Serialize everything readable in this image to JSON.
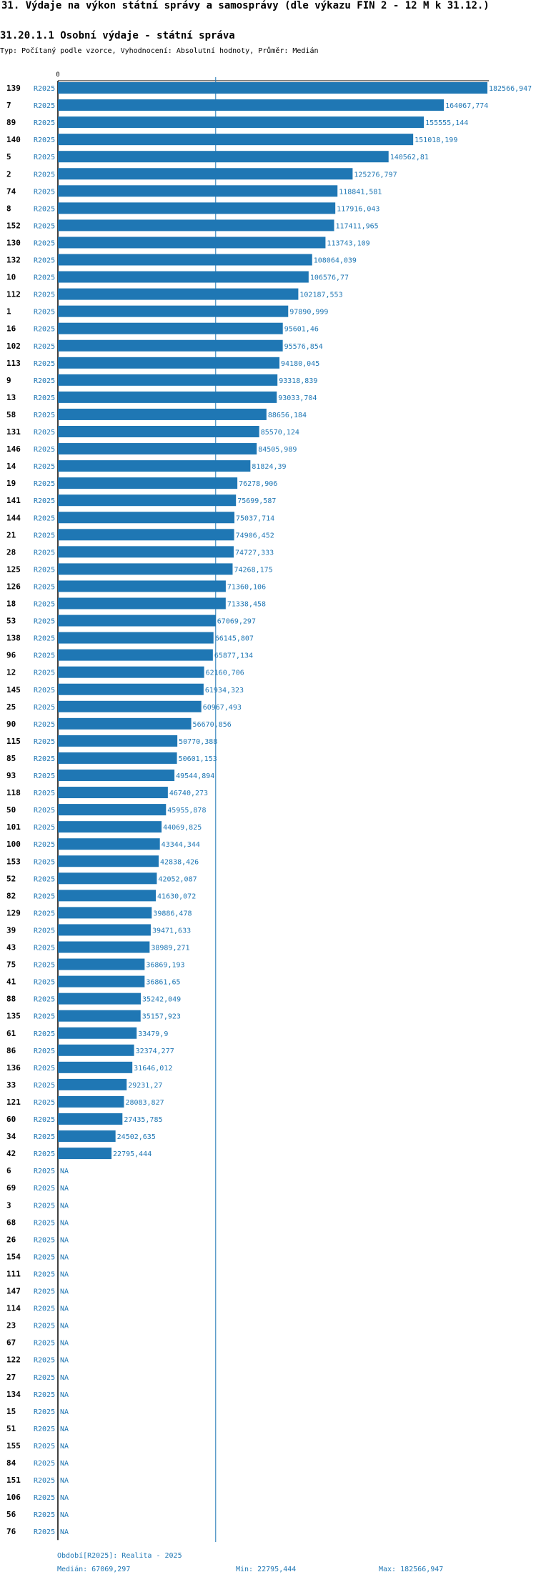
{
  "header": {
    "title": "31. Výdaje na výkon státní správy a samosprávy (dle výkazu FIN 2 - 12 M k 31.12.)",
    "subtitle": "31.20.1.1 Osobní výdaje - státní správa",
    "type_line": "Typ: Počítaný podle vzorce, Vyhodnocení: Absolutní hodnoty, Průměr: Medián"
  },
  "footer": {
    "period": "Období[R2025]: Realita - 2025",
    "median": "Medián: 67069,297",
    "min": "Min: 22795,444",
    "max": "Max: 182566,947"
  },
  "colors": {
    "bar": "#1f77b4",
    "text": "#000000",
    "label": "#1f77b4"
  },
  "chart_data": {
    "type": "bar",
    "orientation": "horizontal",
    "title": "31.20.1.1 Osobní výdaje - státní správa",
    "axis_zero_label": "0",
    "period_label": "R2025",
    "na_label": "NA",
    "xlim": [
      0,
      182566.947
    ],
    "median": 67069.297,
    "rows": [
      {
        "id": "139",
        "value": 182566.947,
        "label": "182566,947"
      },
      {
        "id": "7",
        "value": 164067.774,
        "label": "164067,774"
      },
      {
        "id": "89",
        "value": 155555.144,
        "label": "155555,144"
      },
      {
        "id": "140",
        "value": 151018.199,
        "label": "151018,199"
      },
      {
        "id": "5",
        "value": 140562.81,
        "label": "140562,81"
      },
      {
        "id": "2",
        "value": 125276.797,
        "label": "125276,797"
      },
      {
        "id": "74",
        "value": 118841.581,
        "label": "118841,581"
      },
      {
        "id": "8",
        "value": 117916.043,
        "label": "117916,043"
      },
      {
        "id": "152",
        "value": 117411.965,
        "label": "117411,965"
      },
      {
        "id": "130",
        "value": 113743.109,
        "label": "113743,109"
      },
      {
        "id": "132",
        "value": 108064.039,
        "label": "108064,039"
      },
      {
        "id": "10",
        "value": 106576.77,
        "label": "106576,77"
      },
      {
        "id": "112",
        "value": 102187.553,
        "label": "102187,553"
      },
      {
        "id": "1",
        "value": 97890.999,
        "label": "97890,999"
      },
      {
        "id": "16",
        "value": 95601.46,
        "label": "95601,46"
      },
      {
        "id": "102",
        "value": 95576.854,
        "label": "95576,854"
      },
      {
        "id": "113",
        "value": 94180.045,
        "label": "94180,045"
      },
      {
        "id": "9",
        "value": 93318.839,
        "label": "93318,839"
      },
      {
        "id": "13",
        "value": 93033.704,
        "label": "93033,704"
      },
      {
        "id": "58",
        "value": 88656.184,
        "label": "88656,184"
      },
      {
        "id": "131",
        "value": 85570.124,
        "label": "85570,124"
      },
      {
        "id": "146",
        "value": 84505.989,
        "label": "84505,989"
      },
      {
        "id": "14",
        "value": 81824.39,
        "label": "81824,39"
      },
      {
        "id": "19",
        "value": 76278.906,
        "label": "76278,906"
      },
      {
        "id": "141",
        "value": 75699.587,
        "label": "75699,587"
      },
      {
        "id": "144",
        "value": 75037.714,
        "label": "75037,714"
      },
      {
        "id": "21",
        "value": 74906.452,
        "label": "74906,452"
      },
      {
        "id": "28",
        "value": 74727.333,
        "label": "74727,333"
      },
      {
        "id": "125",
        "value": 74268.175,
        "label": "74268,175"
      },
      {
        "id": "126",
        "value": 71360.106,
        "label": "71360,106"
      },
      {
        "id": "18",
        "value": 71338.458,
        "label": "71338,458"
      },
      {
        "id": "53",
        "value": 67069.297,
        "label": "67069,297"
      },
      {
        "id": "138",
        "value": 66145.807,
        "label": "66145,807"
      },
      {
        "id": "96",
        "value": 65877.134,
        "label": "65877,134"
      },
      {
        "id": "12",
        "value": 62160.706,
        "label": "62160,706"
      },
      {
        "id": "145",
        "value": 61934.323,
        "label": "61934,323"
      },
      {
        "id": "25",
        "value": 60967.493,
        "label": "60967,493"
      },
      {
        "id": "90",
        "value": 56670.856,
        "label": "56670,856"
      },
      {
        "id": "115",
        "value": 50770.388,
        "label": "50770,388"
      },
      {
        "id": "85",
        "value": 50601.153,
        "label": "50601,153"
      },
      {
        "id": "93",
        "value": 49544.894,
        "label": "49544,894"
      },
      {
        "id": "118",
        "value": 46740.273,
        "label": "46740,273"
      },
      {
        "id": "50",
        "value": 45955.878,
        "label": "45955,878"
      },
      {
        "id": "101",
        "value": 44069.825,
        "label": "44069,825"
      },
      {
        "id": "100",
        "value": 43344.344,
        "label": "43344,344"
      },
      {
        "id": "153",
        "value": 42838.426,
        "label": "42838,426"
      },
      {
        "id": "52",
        "value": 42052.087,
        "label": "42052,087"
      },
      {
        "id": "82",
        "value": 41630.072,
        "label": "41630,072"
      },
      {
        "id": "129",
        "value": 39886.478,
        "label": "39886,478"
      },
      {
        "id": "39",
        "value": 39471.633,
        "label": "39471,633"
      },
      {
        "id": "43",
        "value": 38989.271,
        "label": "38989,271"
      },
      {
        "id": "75",
        "value": 36869.193,
        "label": "36869,193"
      },
      {
        "id": "41",
        "value": 36861.65,
        "label": "36861,65"
      },
      {
        "id": "88",
        "value": 35242.049,
        "label": "35242,049"
      },
      {
        "id": "135",
        "value": 35157.923,
        "label": "35157,923"
      },
      {
        "id": "61",
        "value": 33479.9,
        "label": "33479,9"
      },
      {
        "id": "86",
        "value": 32374.277,
        "label": "32374,277"
      },
      {
        "id": "136",
        "value": 31646.012,
        "label": "31646,012"
      },
      {
        "id": "33",
        "value": 29231.27,
        "label": "29231,27"
      },
      {
        "id": "121",
        "value": 28083.827,
        "label": "28083,827"
      },
      {
        "id": "60",
        "value": 27435.785,
        "label": "27435,785"
      },
      {
        "id": "34",
        "value": 24502.635,
        "label": "24502,635"
      },
      {
        "id": "42",
        "value": 22795.444,
        "label": "22795,444"
      },
      {
        "id": "6",
        "value": null,
        "label": "NA"
      },
      {
        "id": "69",
        "value": null,
        "label": "NA"
      },
      {
        "id": "3",
        "value": null,
        "label": "NA"
      },
      {
        "id": "68",
        "value": null,
        "label": "NA"
      },
      {
        "id": "26",
        "value": null,
        "label": "NA"
      },
      {
        "id": "154",
        "value": null,
        "label": "NA"
      },
      {
        "id": "111",
        "value": null,
        "label": "NA"
      },
      {
        "id": "147",
        "value": null,
        "label": "NA"
      },
      {
        "id": "114",
        "value": null,
        "label": "NA"
      },
      {
        "id": "23",
        "value": null,
        "label": "NA"
      },
      {
        "id": "67",
        "value": null,
        "label": "NA"
      },
      {
        "id": "122",
        "value": null,
        "label": "NA"
      },
      {
        "id": "27",
        "value": null,
        "label": "NA"
      },
      {
        "id": "134",
        "value": null,
        "label": "NA"
      },
      {
        "id": "15",
        "value": null,
        "label": "NA"
      },
      {
        "id": "51",
        "value": null,
        "label": "NA"
      },
      {
        "id": "155",
        "value": null,
        "label": "NA"
      },
      {
        "id": "84",
        "value": null,
        "label": "NA"
      },
      {
        "id": "151",
        "value": null,
        "label": "NA"
      },
      {
        "id": "106",
        "value": null,
        "label": "NA"
      },
      {
        "id": "56",
        "value": null,
        "label": "NA"
      },
      {
        "id": "76",
        "value": null,
        "label": "NA"
      }
    ]
  }
}
